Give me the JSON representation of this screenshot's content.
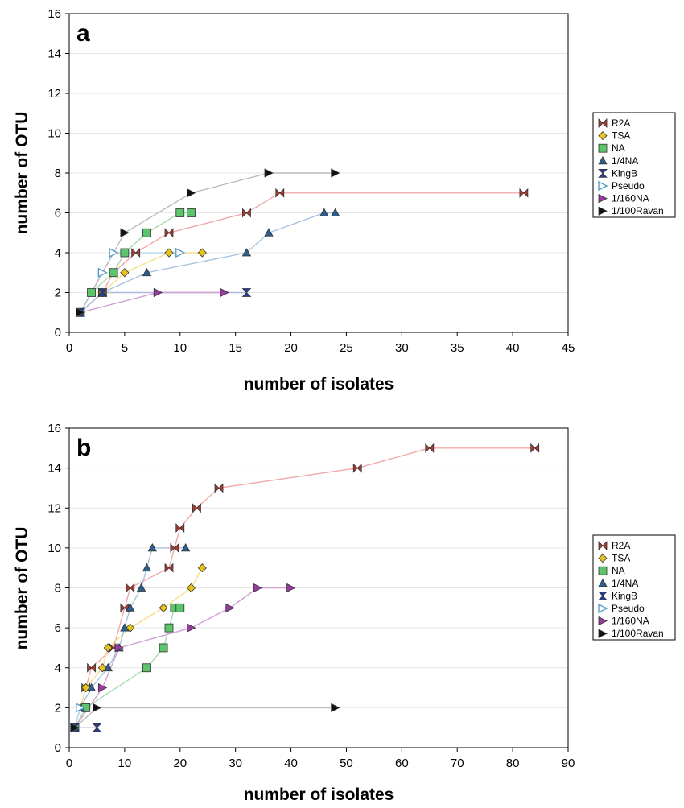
{
  "chart_data": [
    {
      "type": "line",
      "panel_label": "a",
      "xlabel": "number of isolates",
      "ylabel": "number of OTU",
      "xlim": [
        0,
        45
      ],
      "ylim": [
        0,
        16
      ],
      "xticks": [
        0,
        5,
        10,
        15,
        20,
        25,
        30,
        35,
        40,
        45
      ],
      "yticks": [
        0,
        2,
        4,
        6,
        8,
        10,
        12,
        14,
        16
      ],
      "grid": "horizontal",
      "legend_position": "right",
      "series": [
        {
          "name": "R2A",
          "marker": "bowtie",
          "color": "#a83a32",
          "line": "#f0a9a9",
          "x": [
            1,
            3,
            4,
            6,
            9,
            16,
            19,
            41
          ],
          "y": [
            1,
            2,
            3,
            4,
            5,
            6,
            7,
            7
          ]
        },
        {
          "name": "TSA",
          "marker": "diamond",
          "color": "#e8c21c",
          "line": "#f3df8a",
          "x": [
            1,
            3,
            5,
            9,
            12
          ],
          "y": [
            1,
            2,
            3,
            4,
            4
          ]
        },
        {
          "name": "NA",
          "marker": "square",
          "color": "#5cc46a",
          "line": "#a8dcb0",
          "x": [
            1,
            2,
            4,
            5,
            7,
            10,
            11
          ],
          "y": [
            1,
            2,
            3,
            4,
            5,
            6,
            6
          ]
        },
        {
          "name": "1/4NA",
          "marker": "triangle-up",
          "color": "#2e5d8e",
          "line": "#a8c4e0",
          "x": [
            1,
            3,
            7,
            16,
            18,
            23,
            24
          ],
          "y": [
            1,
            2,
            3,
            4,
            5,
            6,
            6
          ]
        },
        {
          "name": "KingB",
          "marker": "hourglass",
          "color": "#2a3c9a",
          "line": "#b0b8dd",
          "x": [
            1,
            3,
            16
          ],
          "y": [
            1,
            2,
            2
          ]
        },
        {
          "name": "Pseudo",
          "marker": "triangle-right-open",
          "color": "#5a9ec8",
          "line": "#bcd8ea",
          "x": [
            1,
            3,
            4,
            10
          ],
          "y": [
            1,
            3,
            4,
            4
          ]
        },
        {
          "name": "1/160NA",
          "marker": "triangle-right",
          "color": "#9a3aa0",
          "line": "#d0a0d6",
          "x": [
            1,
            8,
            14
          ],
          "y": [
            1,
            2,
            2
          ]
        },
        {
          "name": "1/100Ravan",
          "marker": "triangle-right",
          "color": "#111111",
          "line": "#bbbbbb",
          "x": [
            1,
            5,
            11,
            18,
            24
          ],
          "y": [
            1,
            5,
            7,
            8,
            8
          ]
        }
      ]
    },
    {
      "type": "line",
      "panel_label": "b",
      "xlabel": "number of isolates",
      "ylabel": "number of OTU",
      "xlim": [
        0,
        90
      ],
      "ylim": [
        0,
        16
      ],
      "xticks": [
        0,
        10,
        20,
        30,
        40,
        50,
        60,
        70,
        80,
        90
      ],
      "yticks": [
        0,
        2,
        4,
        6,
        8,
        10,
        12,
        14,
        16
      ],
      "grid": "horizontal",
      "legend_position": "right",
      "series": [
        {
          "name": "R2A",
          "marker": "bowtie",
          "color": "#a83a32",
          "line": "#f0a9a9",
          "x": [
            1,
            2,
            3,
            4,
            8,
            10,
            11,
            18,
            19,
            20,
            23,
            27,
            52,
            65,
            84
          ],
          "y": [
            1,
            2,
            3,
            4,
            5,
            7,
            8,
            9,
            10,
            11,
            12,
            13,
            14,
            15,
            15
          ]
        },
        {
          "name": "TSA",
          "marker": "diamond",
          "color": "#e8c21c",
          "line": "#f3df8a",
          "x": [
            1,
            3,
            6,
            7,
            11,
            17,
            22,
            24
          ],
          "y": [
            1,
            3,
            4,
            5,
            6,
            7,
            8,
            9
          ]
        },
        {
          "name": "NA",
          "marker": "square",
          "color": "#5cc46a",
          "line": "#a8dcb0",
          "x": [
            1,
            3,
            14,
            17,
            18,
            19,
            20
          ],
          "y": [
            1,
            2,
            4,
            5,
            6,
            7,
            7
          ]
        },
        {
          "name": "1/4NA",
          "marker": "triangle-up",
          "color": "#2e5d8e",
          "line": "#a8c4e0",
          "x": [
            1,
            2,
            4,
            7,
            9,
            10,
            11,
            13,
            14,
            15,
            21
          ],
          "y": [
            1,
            2,
            3,
            4,
            5,
            6,
            7,
            8,
            9,
            10,
            10
          ]
        },
        {
          "name": "KingB",
          "marker": "hourglass",
          "color": "#2a3c9a",
          "line": "#b0b8dd",
          "x": [
            1,
            5
          ],
          "y": [
            1,
            1
          ]
        },
        {
          "name": "Pseudo",
          "marker": "triangle-right-open",
          "color": "#5a9ec8",
          "line": "#bcd8ea",
          "x": [
            1,
            2
          ],
          "y": [
            1,
            2
          ]
        },
        {
          "name": "1/160NA",
          "marker": "triangle-right",
          "color": "#9a3aa0",
          "line": "#d0a0d6",
          "x": [
            1,
            6,
            9,
            22,
            29,
            34,
            40
          ],
          "y": [
            1,
            3,
            5,
            6,
            7,
            8,
            8
          ]
        },
        {
          "name": "1/100Ravan",
          "marker": "triangle-right",
          "color": "#111111",
          "line": "#bbbbbb",
          "x": [
            1,
            5,
            48
          ],
          "y": [
            1,
            2,
            2
          ]
        }
      ]
    }
  ]
}
